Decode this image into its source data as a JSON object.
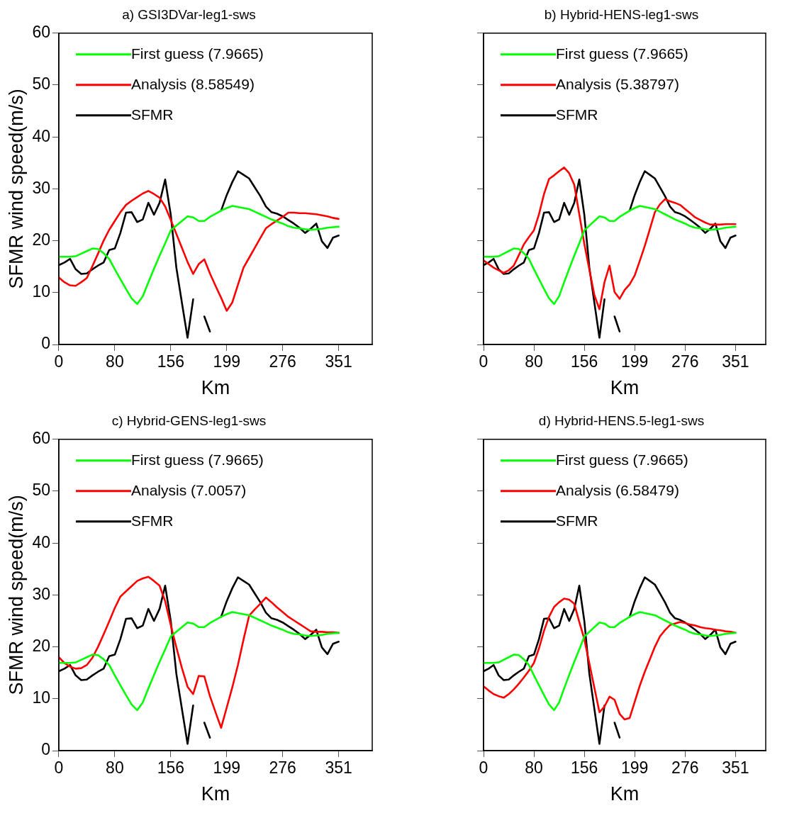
{
  "chart_data": [
    {
      "type": "line",
      "title": "a) GSI3DVar-leg1-sws",
      "xlabel": "Km",
      "ylabel": "SFMR wind speed(m/s)",
      "ylim": [
        0,
        60
      ],
      "yticks": [
        0,
        10,
        20,
        30,
        40,
        50,
        60
      ],
      "grid": false,
      "legend": "top left",
      "marker": "none",
      "categories": [
        "0",
        null,
        null,
        null,
        null,
        null,
        null,
        null,
        null,
        null,
        "80",
        null,
        null,
        null,
        null,
        null,
        null,
        null,
        null,
        null,
        "156",
        null,
        null,
        null,
        null,
        null,
        null,
        null,
        null,
        null,
        "199",
        null,
        null,
        null,
        null,
        null,
        null,
        null,
        null,
        null,
        "276",
        null,
        null,
        null,
        null,
        null,
        null,
        null,
        null,
        null,
        "351",
        null,
        null,
        null,
        null,
        null,
        null
      ],
      "series": [
        {
          "name": "First guess (7.9665)",
          "color": "#00ff00",
          "values": [
            16.9,
            16.9,
            16.9,
            17.0,
            17.5,
            18.0,
            18.5,
            18.4,
            17.6,
            16.5,
            14.5,
            12.6,
            10.7,
            8.9,
            7.8,
            9.3,
            12.0,
            14.6,
            17.1,
            19.5,
            22.0,
            22.9,
            23.8,
            24.7,
            24.5,
            23.8,
            23.8,
            24.6,
            25.2,
            25.8,
            26.3,
            26.7,
            26.5,
            26.3,
            26.1,
            25.6,
            25.1,
            24.6,
            24.1,
            23.7,
            23.3,
            22.8,
            22.5,
            22.4,
            22.2,
            22.1,
            22.2,
            22.3,
            22.5,
            22.6,
            22.7,
            null,
            null,
            null,
            null,
            null,
            null
          ]
        },
        {
          "name": "Analysis (8.58549)",
          "color": "#ff0000",
          "values": [
            12.9,
            12.0,
            11.4,
            11.3,
            12.0,
            12.8,
            15.1,
            17.5,
            20.0,
            22.1,
            23.8,
            25.5,
            26.9,
            27.7,
            28.4,
            29.1,
            29.6,
            29.0,
            28.3,
            26.6,
            24.0,
            21.3,
            18.6,
            15.9,
            13.6,
            15.5,
            16.4,
            13.7,
            11.3,
            9.0,
            6.5,
            8.1,
            11.5,
            14.8,
            16.7,
            18.6,
            20.5,
            22.4,
            23.2,
            23.9,
            24.6,
            25.4,
            25.4,
            25.3,
            25.3,
            25.2,
            25.1,
            24.9,
            24.7,
            24.4,
            24.2,
            null,
            null,
            null,
            null,
            null,
            null
          ]
        },
        {
          "name": "SFMR",
          "color": "#000000",
          "values": [
            15.3,
            15.8,
            16.5,
            14.5,
            13.6,
            13.7,
            14.5,
            15.2,
            15.8,
            18.2,
            18.5,
            21.5,
            25.4,
            25.5,
            23.6,
            24.1,
            27.3,
            25.0,
            27.3,
            31.8,
            25.0,
            14.8,
            8.0,
            1.3,
            8.7,
            null,
            5.4,
            2.5,
            null,
            25.8,
            28.8,
            31.3,
            33.4,
            32.7,
            32.0,
            30.3,
            28.6,
            26.6,
            25.5,
            25.2,
            24.7,
            24.0,
            23.3,
            22.5,
            21.5,
            22.3,
            23.3,
            19.9,
            18.6,
            20.6,
            21.0,
            null,
            null,
            null,
            null,
            null,
            null
          ]
        }
      ]
    },
    {
      "type": "line",
      "title": "b) Hybrid-HENS-leg1-sws",
      "xlabel": "Km",
      "ylim": [
        0,
        60
      ],
      "yticks": [
        0,
        10,
        20,
        30,
        40,
        50,
        60
      ],
      "grid": false,
      "legend": "top left",
      "marker": "none",
      "tick_labels": "x",
      "categories": [
        "0",
        null,
        null,
        null,
        null,
        null,
        null,
        null,
        null,
        null,
        "80",
        null,
        null,
        null,
        null,
        null,
        null,
        null,
        null,
        null,
        "156",
        null,
        null,
        null,
        null,
        null,
        null,
        null,
        null,
        null,
        "199",
        null,
        null,
        null,
        null,
        null,
        null,
        null,
        null,
        null,
        "276",
        null,
        null,
        null,
        null,
        null,
        null,
        null,
        null,
        null,
        "351",
        null,
        null,
        null,
        null,
        null,
        null
      ],
      "series": [
        {
          "name": "First guess (7.9665)",
          "color": "#00ff00",
          "values": [
            16.9,
            16.9,
            16.9,
            17.0,
            17.5,
            18.0,
            18.5,
            18.4,
            17.6,
            16.5,
            14.5,
            12.6,
            10.7,
            8.9,
            7.8,
            9.3,
            12.0,
            14.6,
            17.1,
            19.5,
            22.0,
            22.9,
            23.8,
            24.7,
            24.5,
            23.8,
            23.8,
            24.6,
            25.2,
            25.8,
            26.3,
            26.7,
            26.5,
            26.3,
            26.1,
            25.6,
            25.1,
            24.6,
            24.1,
            23.7,
            23.3,
            22.8,
            22.5,
            22.4,
            22.2,
            22.1,
            22.2,
            22.3,
            22.5,
            22.6,
            22.7,
            null,
            null,
            null,
            null,
            null,
            null
          ]
        },
        {
          "name": "Analysis (5.38797)",
          "color": "#ff0000",
          "values": [
            16.2,
            15.5,
            14.8,
            14.3,
            13.8,
            14.3,
            15.2,
            17.2,
            19.3,
            20.7,
            22.0,
            25.1,
            29.0,
            31.9,
            32.6,
            33.4,
            34.1,
            33.0,
            30.8,
            25.1,
            19.4,
            14.4,
            9.5,
            6.8,
            12.0,
            15.2,
            10.1,
            8.8,
            10.5,
            11.6,
            13.3,
            16.1,
            19.0,
            22.2,
            25.5,
            27.0,
            28.0,
            27.6,
            27.3,
            26.9,
            26.1,
            25.3,
            24.5,
            24.0,
            23.5,
            23.1,
            23.1,
            23.1,
            23.2,
            23.2,
            23.2,
            null,
            null,
            null,
            null,
            null,
            null
          ]
        },
        {
          "name": "SFMR",
          "color": "#000000",
          "values": [
            15.3,
            15.8,
            16.5,
            14.5,
            13.6,
            13.7,
            14.5,
            15.2,
            15.8,
            18.2,
            18.5,
            21.5,
            25.4,
            25.5,
            23.6,
            24.1,
            27.3,
            25.0,
            27.3,
            31.8,
            25.0,
            14.8,
            8.0,
            1.3,
            8.7,
            null,
            5.4,
            2.5,
            null,
            25.8,
            28.8,
            31.3,
            33.4,
            32.7,
            32.0,
            30.3,
            28.6,
            26.6,
            25.5,
            25.2,
            24.7,
            24.0,
            23.3,
            22.5,
            21.5,
            22.3,
            23.3,
            19.9,
            18.6,
            20.6,
            21.0,
            null,
            null,
            null,
            null,
            null,
            null
          ]
        }
      ]
    },
    {
      "type": "line",
      "title": "c) Hybrid-GENS-leg1-sws",
      "xlabel": "Km",
      "ylabel": "SFMR wind speed(m/s)",
      "ylim": [
        0,
        60
      ],
      "yticks": [
        0,
        10,
        20,
        30,
        40,
        50,
        60
      ],
      "grid": false,
      "legend": "top left",
      "marker": "none",
      "categories": [
        "0",
        null,
        null,
        null,
        null,
        null,
        null,
        null,
        null,
        null,
        "80",
        null,
        null,
        null,
        null,
        null,
        null,
        null,
        null,
        null,
        "156",
        null,
        null,
        null,
        null,
        null,
        null,
        null,
        null,
        null,
        "199",
        null,
        null,
        null,
        null,
        null,
        null,
        null,
        null,
        null,
        "276",
        null,
        null,
        null,
        null,
        null,
        null,
        null,
        null,
        null,
        "351",
        null,
        null,
        null,
        null,
        null,
        null
      ],
      "series": [
        {
          "name": "First guess (7.9665)",
          "color": "#00ff00",
          "values": [
            16.9,
            16.9,
            16.9,
            17.0,
            17.5,
            18.0,
            18.5,
            18.4,
            17.6,
            16.5,
            14.5,
            12.6,
            10.7,
            8.9,
            7.8,
            9.3,
            12.0,
            14.6,
            17.1,
            19.5,
            22.0,
            22.9,
            23.8,
            24.7,
            24.5,
            23.8,
            23.8,
            24.6,
            25.2,
            25.8,
            26.3,
            26.7,
            26.5,
            26.3,
            26.1,
            25.6,
            25.1,
            24.6,
            24.1,
            23.7,
            23.3,
            22.8,
            22.5,
            22.4,
            22.2,
            22.1,
            22.2,
            22.3,
            22.5,
            22.6,
            22.7,
            null,
            null,
            null,
            null,
            null,
            null
          ]
        },
        {
          "name": "Analysis (7.0057)",
          "color": "#ff0000",
          "values": [
            18.0,
            16.9,
            16.2,
            15.8,
            15.9,
            16.5,
            17.9,
            20.0,
            22.4,
            24.9,
            27.5,
            29.7,
            30.7,
            31.7,
            32.7,
            33.2,
            33.5,
            32.7,
            31.8,
            28.8,
            24.2,
            19.9,
            15.9,
            12.3,
            10.9,
            14.4,
            14.3,
            10.5,
            7.4,
            4.4,
            8.3,
            12.2,
            16.5,
            21.4,
            26.0,
            27.2,
            28.3,
            29.5,
            28.6,
            27.6,
            26.7,
            25.8,
            25.1,
            24.4,
            23.7,
            23.0,
            22.9,
            22.9,
            22.8,
            22.8,
            22.7,
            null,
            null,
            null,
            null,
            null,
            null
          ]
        },
        {
          "name": "SFMR",
          "color": "#000000",
          "values": [
            15.3,
            15.8,
            16.5,
            14.5,
            13.6,
            13.7,
            14.5,
            15.2,
            15.8,
            18.2,
            18.5,
            21.5,
            25.4,
            25.5,
            23.6,
            24.1,
            27.3,
            25.0,
            27.3,
            31.8,
            25.0,
            14.8,
            8.0,
            1.3,
            8.7,
            null,
            5.4,
            2.5,
            null,
            25.8,
            28.8,
            31.3,
            33.4,
            32.7,
            32.0,
            30.3,
            28.6,
            26.6,
            25.5,
            25.2,
            24.7,
            24.0,
            23.3,
            22.5,
            21.5,
            22.3,
            23.3,
            19.9,
            18.6,
            20.6,
            21.0,
            null,
            null,
            null,
            null,
            null,
            null
          ]
        }
      ]
    },
    {
      "type": "line",
      "title": "d) Hybrid-HENS.5-leg1-sws",
      "xlabel": "Km",
      "ylim": [
        0,
        60
      ],
      "yticks": [
        0,
        10,
        20,
        30,
        40,
        50,
        60
      ],
      "grid": false,
      "legend": "top left",
      "marker": "none",
      "tick_labels": "x",
      "categories": [
        "0",
        null,
        null,
        null,
        null,
        null,
        null,
        null,
        null,
        null,
        "80",
        null,
        null,
        null,
        null,
        null,
        null,
        null,
        null,
        null,
        "156",
        null,
        null,
        null,
        null,
        null,
        null,
        null,
        null,
        null,
        "199",
        null,
        null,
        null,
        null,
        null,
        null,
        null,
        null,
        null,
        "276",
        null,
        null,
        null,
        null,
        null,
        null,
        null,
        null,
        null,
        "351",
        null,
        null,
        null,
        null,
        null,
        null
      ],
      "series": [
        {
          "name": "First guess (7.9665)",
          "color": "#00ff00",
          "values": [
            16.9,
            16.9,
            16.9,
            17.0,
            17.5,
            18.0,
            18.5,
            18.4,
            17.6,
            16.5,
            14.5,
            12.6,
            10.7,
            8.9,
            7.8,
            9.3,
            12.0,
            14.6,
            17.1,
            19.5,
            22.0,
            22.9,
            23.8,
            24.7,
            24.5,
            23.8,
            23.8,
            24.6,
            25.2,
            25.8,
            26.3,
            26.7,
            26.5,
            26.3,
            26.1,
            25.6,
            25.1,
            24.6,
            24.1,
            23.7,
            23.3,
            22.8,
            22.5,
            22.4,
            22.2,
            22.1,
            22.2,
            22.3,
            22.5,
            22.6,
            22.7,
            null,
            null,
            null,
            null,
            null,
            null
          ]
        },
        {
          "name": "Analysis (6.58479)",
          "color": "#ff0000",
          "values": [
            12.4,
            11.6,
            10.9,
            10.5,
            10.2,
            10.9,
            11.8,
            12.9,
            14.1,
            15.4,
            16.9,
            19.7,
            23.1,
            25.8,
            27.7,
            28.6,
            29.3,
            29.1,
            28.3,
            24.8,
            21.5,
            16.8,
            12.1,
            7.4,
            8.5,
            10.4,
            9.8,
            7.1,
            6.0,
            6.3,
            9.4,
            12.5,
            15.2,
            17.6,
            20.0,
            22.0,
            23.2,
            24.2,
            24.5,
            24.8,
            24.6,
            24.3,
            24.1,
            23.8,
            23.6,
            23.5,
            23.3,
            23.2,
            23.0,
            22.9,
            22.7,
            null,
            null,
            null,
            null,
            null,
            null
          ]
        },
        {
          "name": "SFMR",
          "color": "#000000",
          "values": [
            15.3,
            15.8,
            16.5,
            14.5,
            13.6,
            13.7,
            14.5,
            15.2,
            15.8,
            18.2,
            18.5,
            21.5,
            25.4,
            25.5,
            23.6,
            24.1,
            27.3,
            25.0,
            27.3,
            31.8,
            25.0,
            14.8,
            8.0,
            1.3,
            8.7,
            null,
            5.4,
            2.5,
            null,
            25.8,
            28.8,
            31.3,
            33.4,
            32.7,
            32.0,
            30.3,
            28.6,
            26.6,
            25.5,
            25.2,
            24.7,
            24.0,
            23.3,
            22.5,
            21.5,
            22.3,
            23.3,
            19.9,
            18.6,
            20.6,
            21.0,
            null,
            null,
            null,
            null,
            null,
            null
          ]
        }
      ]
    }
  ]
}
